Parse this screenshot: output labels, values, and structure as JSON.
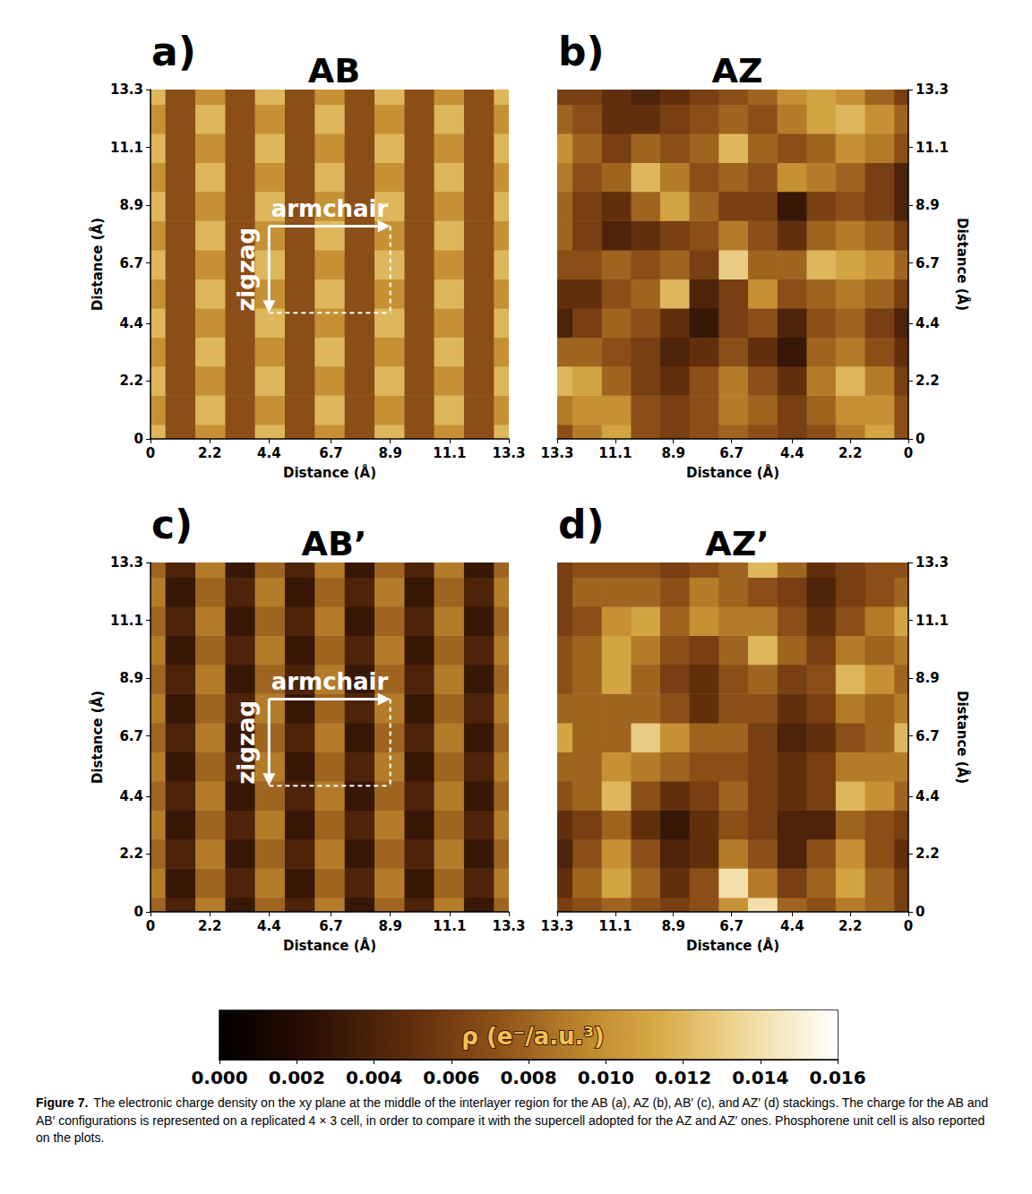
{
  "chart_data": [
    {
      "type": "heatmap",
      "label": "a)",
      "title": "AB",
      "xlabel": "Distance (Å)",
      "ylabel": "Distance (Å)",
      "xlim": [
        0,
        13.3
      ],
      "ylim": [
        0,
        13.3
      ],
      "xticks": [
        0,
        2.2,
        4.4,
        6.7,
        8.9,
        11.1,
        13.3
      ],
      "yticks": [
        0,
        2.2,
        4.4,
        6.7,
        8.9,
        11.1,
        13.3
      ],
      "annotations": [
        "armchair",
        "zigzag"
      ],
      "x": [
        0,
        1.11,
        2.22,
        3.33,
        4.43,
        5.54,
        6.65,
        7.76,
        8.87,
        9.98,
        11.08,
        12.19,
        13.3
      ],
      "y": [
        0,
        1.11,
        2.22,
        3.33,
        4.43,
        5.54,
        6.65,
        7.76,
        8.87,
        9.98,
        11.08,
        12.19,
        13.3
      ],
      "z": [
        [
          0.012,
          0.007,
          0.01,
          0.007,
          0.012,
          0.007,
          0.01,
          0.007,
          0.012,
          0.007,
          0.01,
          0.007,
          0.012
        ],
        [
          0.01,
          0.007,
          0.012,
          0.007,
          0.01,
          0.007,
          0.012,
          0.007,
          0.01,
          0.007,
          0.012,
          0.007,
          0.01
        ],
        [
          0.012,
          0.007,
          0.01,
          0.007,
          0.012,
          0.007,
          0.01,
          0.007,
          0.012,
          0.007,
          0.01,
          0.007,
          0.012
        ],
        [
          0.01,
          0.007,
          0.012,
          0.007,
          0.01,
          0.007,
          0.012,
          0.007,
          0.01,
          0.007,
          0.012,
          0.007,
          0.01
        ],
        [
          0.012,
          0.007,
          0.01,
          0.007,
          0.012,
          0.007,
          0.01,
          0.007,
          0.012,
          0.007,
          0.01,
          0.007,
          0.012
        ],
        [
          0.01,
          0.007,
          0.012,
          0.007,
          0.01,
          0.007,
          0.012,
          0.007,
          0.01,
          0.007,
          0.012,
          0.007,
          0.01
        ],
        [
          0.012,
          0.007,
          0.01,
          0.007,
          0.012,
          0.007,
          0.01,
          0.007,
          0.012,
          0.007,
          0.01,
          0.007,
          0.012
        ],
        [
          0.01,
          0.007,
          0.012,
          0.007,
          0.01,
          0.007,
          0.012,
          0.007,
          0.01,
          0.007,
          0.012,
          0.007,
          0.01
        ],
        [
          0.012,
          0.007,
          0.01,
          0.007,
          0.012,
          0.007,
          0.01,
          0.007,
          0.012,
          0.007,
          0.01,
          0.007,
          0.012
        ],
        [
          0.01,
          0.007,
          0.012,
          0.007,
          0.01,
          0.007,
          0.012,
          0.007,
          0.01,
          0.007,
          0.012,
          0.007,
          0.01
        ],
        [
          0.012,
          0.007,
          0.01,
          0.007,
          0.012,
          0.007,
          0.01,
          0.007,
          0.012,
          0.007,
          0.01,
          0.007,
          0.012
        ],
        [
          0.01,
          0.007,
          0.012,
          0.007,
          0.01,
          0.007,
          0.012,
          0.007,
          0.01,
          0.007,
          0.012,
          0.007,
          0.01
        ],
        [
          0.012,
          0.007,
          0.01,
          0.007,
          0.012,
          0.007,
          0.01,
          0.007,
          0.012,
          0.007,
          0.01,
          0.007,
          0.012
        ]
      ]
    },
    {
      "type": "heatmap",
      "label": "b)",
      "title": "AZ",
      "xlabel": "Distance (Å)",
      "ylabel": "Distance (Å)",
      "xlim": [
        13.3,
        0
      ],
      "ylim": [
        0,
        13.3
      ],
      "xticks": [
        0,
        2.2,
        4.4,
        6.7,
        8.9,
        11.1,
        13.3
      ],
      "yticks": [
        0,
        2.2,
        4.4,
        6.7,
        8.9,
        11.1,
        13.3
      ],
      "x": [
        0,
        1.11,
        2.22,
        3.33,
        4.43,
        5.54,
        6.65,
        7.76,
        8.87,
        9.98,
        11.08,
        12.19,
        13.3
      ],
      "y": [
        0,
        1.11,
        2.22,
        3.33,
        4.43,
        5.54,
        6.65,
        7.76,
        8.87,
        9.98,
        11.08,
        12.19,
        13.3
      ],
      "z": [
        [
          0.007,
          0.011,
          0.009,
          0.007,
          0.006,
          0.007,
          0.008,
          0.007,
          0.006,
          0.007,
          0.011,
          0.009,
          0.007
        ],
        [
          0.007,
          0.01,
          0.01,
          0.008,
          0.006,
          0.008,
          0.009,
          0.007,
          0.006,
          0.007,
          0.01,
          0.01,
          0.009
        ],
        [
          0.006,
          0.009,
          0.012,
          0.009,
          0.005,
          0.007,
          0.009,
          0.007,
          0.005,
          0.006,
          0.008,
          0.011,
          0.012
        ],
        [
          0.005,
          0.007,
          0.009,
          0.008,
          0.003,
          0.005,
          0.007,
          0.005,
          0.004,
          0.006,
          0.007,
          0.008,
          0.008
        ],
        [
          0.004,
          0.006,
          0.008,
          0.007,
          0.004,
          0.007,
          0.006,
          0.003,
          0.005,
          0.007,
          0.008,
          0.006,
          0.004
        ],
        [
          0.006,
          0.008,
          0.009,
          0.008,
          0.007,
          0.01,
          0.006,
          0.004,
          0.012,
          0.008,
          0.007,
          0.005,
          0.005
        ],
        [
          0.008,
          0.01,
          0.011,
          0.012,
          0.008,
          0.008,
          0.013,
          0.006,
          0.008,
          0.007,
          0.008,
          0.007,
          0.007
        ],
        [
          0.006,
          0.008,
          0.009,
          0.008,
          0.005,
          0.007,
          0.009,
          0.007,
          0.006,
          0.005,
          0.004,
          0.006,
          0.008
        ],
        [
          0.004,
          0.006,
          0.007,
          0.006,
          0.003,
          0.006,
          0.006,
          0.008,
          0.011,
          0.008,
          0.005,
          0.006,
          0.008
        ],
        [
          0.004,
          0.006,
          0.008,
          0.009,
          0.01,
          0.007,
          0.008,
          0.007,
          0.009,
          0.012,
          0.008,
          0.007,
          0.009
        ],
        [
          0.007,
          0.009,
          0.01,
          0.008,
          0.007,
          0.008,
          0.012,
          0.008,
          0.007,
          0.008,
          0.006,
          0.008,
          0.01
        ],
        [
          0.008,
          0.01,
          0.012,
          0.011,
          0.009,
          0.007,
          0.008,
          0.007,
          0.006,
          0.005,
          0.005,
          0.007,
          0.008
        ],
        [
          0.006,
          0.008,
          0.01,
          0.011,
          0.01,
          0.008,
          0.007,
          0.006,
          0.005,
          0.004,
          0.005,
          0.006,
          0.006
        ]
      ]
    },
    {
      "type": "heatmap",
      "label": "c)",
      "title": "AB’",
      "xlabel": "Distance (Å)",
      "ylabel": "Distance (Å)",
      "xlim": [
        0,
        13.3
      ],
      "ylim": [
        0,
        13.3
      ],
      "xticks": [
        0,
        2.2,
        4.4,
        6.7,
        8.9,
        11.1,
        13.3
      ],
      "yticks": [
        0,
        2.2,
        4.4,
        6.7,
        8.9,
        11.1,
        13.3
      ],
      "annotations": [
        "armchair",
        "zigzag"
      ],
      "x": [
        0,
        1.11,
        2.22,
        3.33,
        4.43,
        5.54,
        6.65,
        7.76,
        8.87,
        9.98,
        11.08,
        12.19,
        13.3
      ],
      "y": [
        0,
        1.11,
        2.22,
        3.33,
        4.43,
        5.54,
        6.65,
        7.76,
        8.87,
        9.98,
        11.08,
        12.19,
        13.3
      ],
      "z": [
        [
          0.008,
          0.004,
          0.009,
          0.003,
          0.008,
          0.004,
          0.009,
          0.003,
          0.008,
          0.004,
          0.009,
          0.003,
          0.008
        ],
        [
          0.009,
          0.003,
          0.008,
          0.004,
          0.009,
          0.003,
          0.008,
          0.004,
          0.009,
          0.003,
          0.008,
          0.004,
          0.009
        ],
        [
          0.008,
          0.004,
          0.009,
          0.003,
          0.008,
          0.004,
          0.009,
          0.003,
          0.008,
          0.004,
          0.009,
          0.003,
          0.008
        ],
        [
          0.009,
          0.003,
          0.008,
          0.004,
          0.009,
          0.003,
          0.008,
          0.004,
          0.009,
          0.003,
          0.008,
          0.004,
          0.009
        ],
        [
          0.008,
          0.004,
          0.009,
          0.003,
          0.008,
          0.004,
          0.009,
          0.003,
          0.008,
          0.004,
          0.009,
          0.003,
          0.008
        ],
        [
          0.009,
          0.003,
          0.008,
          0.004,
          0.009,
          0.003,
          0.008,
          0.004,
          0.009,
          0.003,
          0.008,
          0.004,
          0.009
        ],
        [
          0.008,
          0.004,
          0.009,
          0.003,
          0.008,
          0.004,
          0.009,
          0.003,
          0.008,
          0.004,
          0.009,
          0.003,
          0.008
        ],
        [
          0.009,
          0.003,
          0.008,
          0.004,
          0.009,
          0.003,
          0.008,
          0.004,
          0.009,
          0.003,
          0.008,
          0.004,
          0.009
        ],
        [
          0.008,
          0.004,
          0.009,
          0.003,
          0.008,
          0.004,
          0.009,
          0.003,
          0.008,
          0.004,
          0.009,
          0.003,
          0.008
        ],
        [
          0.009,
          0.003,
          0.008,
          0.004,
          0.009,
          0.003,
          0.008,
          0.004,
          0.009,
          0.003,
          0.008,
          0.004,
          0.009
        ],
        [
          0.008,
          0.004,
          0.009,
          0.003,
          0.008,
          0.004,
          0.009,
          0.003,
          0.008,
          0.004,
          0.009,
          0.003,
          0.008
        ],
        [
          0.009,
          0.003,
          0.008,
          0.004,
          0.009,
          0.003,
          0.008,
          0.004,
          0.009,
          0.003,
          0.008,
          0.004,
          0.009
        ],
        [
          0.008,
          0.004,
          0.009,
          0.003,
          0.008,
          0.004,
          0.009,
          0.003,
          0.008,
          0.004,
          0.009,
          0.003,
          0.008
        ]
      ]
    },
    {
      "type": "heatmap",
      "label": "d)",
      "title": "AZ’",
      "xlabel": "Distance (Å)",
      "ylabel": "Distance (Å)",
      "xlim": [
        13.3,
        0
      ],
      "ylim": [
        0,
        13.3
      ],
      "xticks": [
        0,
        2.2,
        4.4,
        6.7,
        8.9,
        11.1,
        13.3
      ],
      "yticks": [
        0,
        2.2,
        4.4,
        6.7,
        8.9,
        11.1,
        13.3
      ],
      "x": [
        0,
        1.11,
        2.22,
        3.33,
        4.43,
        5.54,
        6.65,
        7.76,
        8.87,
        9.98,
        11.08,
        12.19,
        13.3
      ],
      "y": [
        0,
        1.11,
        2.22,
        3.33,
        4.43,
        5.54,
        6.65,
        7.76,
        8.87,
        9.98,
        11.08,
        12.19,
        13.3
      ],
      "z": [
        [
          0.006,
          0.008,
          0.009,
          0.007,
          0.008,
          0.014,
          0.01,
          0.007,
          0.006,
          0.007,
          0.008,
          0.007,
          0.006
        ],
        [
          0.006,
          0.008,
          0.011,
          0.008,
          0.006,
          0.009,
          0.014,
          0.007,
          0.005,
          0.008,
          0.011,
          0.008,
          0.005
        ],
        [
          0.005,
          0.007,
          0.01,
          0.007,
          0.004,
          0.007,
          0.009,
          0.005,
          0.004,
          0.007,
          0.01,
          0.007,
          0.004
        ],
        [
          0.006,
          0.007,
          0.008,
          0.004,
          0.004,
          0.006,
          0.007,
          0.005,
          0.003,
          0.005,
          0.008,
          0.006,
          0.005
        ],
        [
          0.008,
          0.01,
          0.012,
          0.006,
          0.005,
          0.006,
          0.008,
          0.006,
          0.005,
          0.007,
          0.012,
          0.008,
          0.007
        ],
        [
          0.009,
          0.009,
          0.009,
          0.006,
          0.005,
          0.006,
          0.007,
          0.007,
          0.008,
          0.009,
          0.01,
          0.008,
          0.008
        ],
        [
          0.012,
          0.008,
          0.007,
          0.005,
          0.004,
          0.006,
          0.008,
          0.008,
          0.01,
          0.013,
          0.008,
          0.008,
          0.011
        ],
        [
          0.009,
          0.008,
          0.009,
          0.006,
          0.005,
          0.007,
          0.007,
          0.005,
          0.007,
          0.008,
          0.008,
          0.008,
          0.008
        ],
        [
          0.008,
          0.01,
          0.012,
          0.007,
          0.006,
          0.008,
          0.007,
          0.005,
          0.006,
          0.008,
          0.011,
          0.008,
          0.007
        ],
        [
          0.009,
          0.008,
          0.009,
          0.006,
          0.008,
          0.012,
          0.008,
          0.006,
          0.007,
          0.009,
          0.011,
          0.008,
          0.007
        ],
        [
          0.011,
          0.009,
          0.007,
          0.005,
          0.007,
          0.009,
          0.009,
          0.01,
          0.008,
          0.011,
          0.01,
          0.007,
          0.006
        ],
        [
          0.008,
          0.007,
          0.006,
          0.004,
          0.006,
          0.007,
          0.008,
          0.009,
          0.007,
          0.008,
          0.008,
          0.008,
          0.006
        ],
        [
          0.007,
          0.007,
          0.006,
          0.005,
          0.008,
          0.012,
          0.008,
          0.007,
          0.006,
          0.007,
          0.007,
          0.007,
          0.006
        ]
      ]
    }
  ],
  "colorbar": {
    "label": "ρ (e⁻/a.u.³)",
    "range": [
      0,
      0.016
    ],
    "ticks": [
      {
        "value": 0,
        "label": "0.000"
      },
      {
        "value": 0.002,
        "label": "0.002"
      },
      {
        "value": 0.004,
        "label": "0.004"
      },
      {
        "value": 0.006,
        "label": "0.006"
      },
      {
        "value": 0.008,
        "label": "0.008"
      },
      {
        "value": 0.01,
        "label": "0.010"
      },
      {
        "value": 0.012,
        "label": "0.012"
      },
      {
        "value": 0.014,
        "label": "0.014"
      },
      {
        "value": 0.016,
        "label": "0.016"
      }
    ]
  },
  "caption": {
    "label": "Figure 7.",
    "text": "The electronic charge density on the xy plane at the middle of the interlayer region for the AB (a), AZ (b), AB′ (c), and AZ′ (d) stackings. The charge for the AB and AB′ configurations is represented on a replicated 4 × 3 cell, in order to compare it with the supercell adopted for the AZ and AZ′ ones. Phosphorene unit cell is also reported on the plots."
  }
}
